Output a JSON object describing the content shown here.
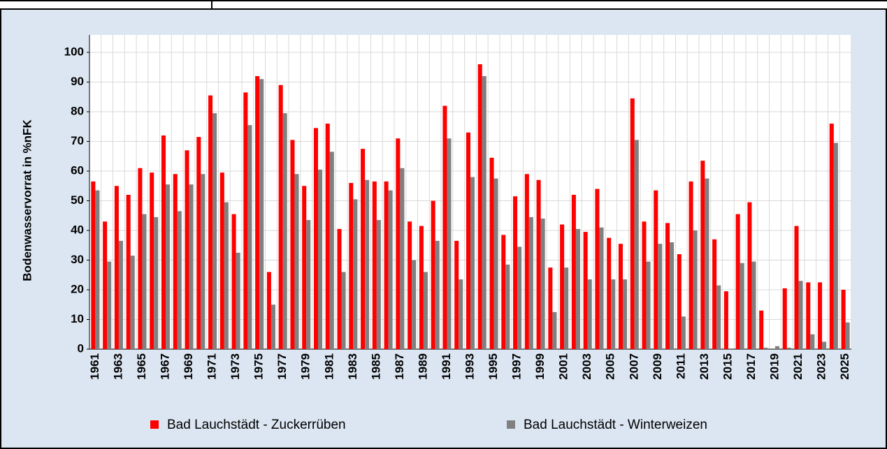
{
  "chart_data": {
    "type": "bar",
    "y_label": "Bodenwasservorrat in %nFK",
    "categories": [
      "1961",
      null,
      "1963",
      null,
      "1965",
      null,
      "1967",
      null,
      "1969",
      null,
      "1971",
      null,
      "1973",
      null,
      "1975",
      null,
      "1977",
      null,
      "1979",
      null,
      "1981",
      null,
      "1983",
      null,
      "1985",
      null,
      "1987",
      null,
      "1989",
      null,
      "1991",
      null,
      "1993",
      null,
      "1995",
      null,
      "1997",
      null,
      "1999",
      null,
      "2001",
      null,
      "2003",
      null,
      "2005",
      null,
      "2007",
      null,
      "2009",
      null,
      "2011",
      null,
      "2013",
      null,
      "2015",
      null,
      "2017",
      null,
      "2019",
      null,
      "2021",
      null,
      "2023",
      null,
      "2025"
    ],
    "series": [
      {
        "name": "Bad Lauchstädt - Zuckerrüben",
        "color": "#ff0000",
        "values": [
          56.5,
          43,
          55,
          52,
          61,
          59.5,
          72,
          59,
          67,
          71.5,
          85.5,
          59.5,
          45.5,
          86.5,
          92,
          26,
          89,
          70.5,
          55,
          74.5,
          76,
          40.5,
          56,
          67.5,
          56.5,
          56.5,
          71,
          43,
          41.5,
          50,
          82,
          36.5,
          73,
          96,
          64.5,
          38.5,
          51.5,
          59,
          57,
          27.5,
          42,
          52,
          39.5,
          54,
          37.5,
          35.5,
          84.5,
          43,
          53.5,
          42.5,
          32,
          56.5,
          63.5,
          37,
          19.5,
          45.5,
          49.5,
          13,
          0,
          20.5,
          41.5,
          22.5,
          22.5,
          76,
          20
        ]
      },
      {
        "name": "Bad Lauchstädt - Winterweizen",
        "color": "#808080",
        "values": [
          53.5,
          29.5,
          36.5,
          31.5,
          45.5,
          44.5,
          55.5,
          46.5,
          55.5,
          59,
          79.5,
          49.5,
          32.5,
          75.5,
          91,
          15,
          79.5,
          59,
          43.5,
          60.5,
          66.5,
          26,
          50.5,
          57,
          43.5,
          53.5,
          61,
          30,
          26,
          36.5,
          71,
          23.5,
          58,
          92,
          57.5,
          28.5,
          34.5,
          44.5,
          44,
          12.5,
          27.5,
          40.5,
          23.5,
          41,
          23.5,
          23.5,
          70.5,
          29.5,
          35.5,
          36,
          11,
          40,
          57.5,
          21.5,
          0,
          29,
          29.5,
          0.5,
          1,
          0.5,
          23,
          5,
          2.5,
          69.5,
          9
        ]
      }
    ],
    "ylim": [
      0,
      100
    ],
    "yticks": [
      0,
      10,
      20,
      30,
      40,
      50,
      60,
      70,
      80,
      90,
      100
    ],
    "grid": true,
    "legend": "bottom"
  }
}
